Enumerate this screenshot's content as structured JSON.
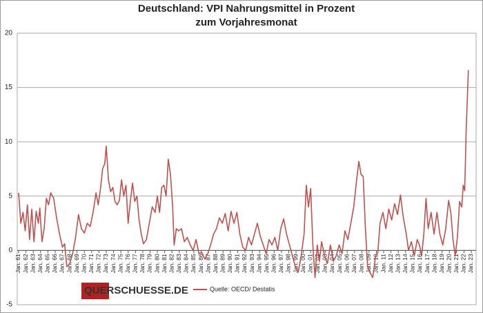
{
  "chart_data": {
    "type": "line",
    "title": "Deutschland: VPI Nahrungsmittel in Prozent",
    "subtitle": "zum Vorjahresmonat",
    "brand": "QUERSCHUESSE.DE",
    "series": [
      {
        "name": "Quelle: OECD/ Destatis",
        "color": "#c0504d",
        "x": [
          1961.0,
          1961.3,
          1961.6,
          1961.9,
          1962.2,
          1962.5,
          1962.8,
          1963.1,
          1963.4,
          1963.7,
          1963.9,
          1964.2,
          1964.5,
          1964.8,
          1965.1,
          1965.4,
          1965.8,
          1966.2,
          1966.6,
          1967.0,
          1967.3,
          1967.6,
          1968.0,
          1968.4,
          1968.8,
          1969.2,
          1969.6,
          1970.0,
          1970.4,
          1970.8,
          1971.2,
          1971.6,
          1971.9,
          1972.2,
          1972.5,
          1972.8,
          1973.0,
          1973.3,
          1973.6,
          1973.9,
          1974.2,
          1974.5,
          1974.8,
          1975.1,
          1975.4,
          1975.7,
          1976.0,
          1976.3,
          1976.6,
          1976.9,
          1977.2,
          1977.5,
          1977.8,
          1978.1,
          1978.5,
          1978.9,
          1979.3,
          1979.7,
          1980.0,
          1980.3,
          1980.6,
          1980.9,
          1981.2,
          1981.5,
          1981.8,
          1982.1,
          1982.3,
          1982.6,
          1982.9,
          1983.3,
          1983.7,
          1984.1,
          1984.5,
          1984.9,
          1985.3,
          1985.7,
          1986.1,
          1986.5,
          1986.9,
          1987.3,
          1987.7,
          1988.1,
          1988.5,
          1988.9,
          1989.3,
          1989.7,
          1990.1,
          1990.5,
          1990.9,
          1991.3,
          1991.7,
          1992.1,
          1992.5,
          1992.9,
          1993.3,
          1993.7,
          1994.1,
          1994.5,
          1994.9,
          1995.3,
          1995.7,
          1996.1,
          1996.5,
          1996.9,
          1997.3,
          1997.7,
          1998.1,
          1998.5,
          1998.9,
          1999.3,
          1999.7,
          2000.1,
          2000.4,
          2000.7,
          2001.0,
          2001.3,
          2001.6,
          2001.9,
          2002.2,
          2002.5,
          2002.9,
          2003.3,
          2003.7,
          2004.1,
          2004.5,
          2004.9,
          2005.3,
          2005.7,
          2006.1,
          2006.5,
          2006.9,
          2007.3,
          2007.6,
          2007.9,
          2008.2,
          2008.5,
          2008.8,
          2009.1,
          2009.5,
          2009.9,
          2010.2,
          2010.5,
          2010.9,
          2011.3,
          2011.7,
          2012.1,
          2012.5,
          2012.9,
          2013.3,
          2013.7,
          2014.1,
          2014.4,
          2014.8,
          2015.2,
          2015.6,
          2015.9,
          2016.2,
          2016.5,
          2016.8,
          2017.1,
          2017.5,
          2017.9,
          2018.3,
          2018.7,
          2019.1,
          2019.5,
          2019.9,
          2020.2,
          2020.5,
          2020.8,
          2021.1,
          2021.4,
          2021.7,
          2021.9,
          2022.1,
          2022.3,
          2022.6
        ],
        "values": [
          5.3,
          2.5,
          3.5,
          1.8,
          4.2,
          1.0,
          3.8,
          0.8,
          3.6,
          2.5,
          3.9,
          0.8,
          2.0,
          4.8,
          4.2,
          5.3,
          4.8,
          3.0,
          1.5,
          0.3,
          0.6,
          -1.5,
          -1.2,
          -0.3,
          1.2,
          3.3,
          2.0,
          1.6,
          2.5,
          2.2,
          3.5,
          5.3,
          4.2,
          5.6,
          7.5,
          8.0,
          9.6,
          6.5,
          5.4,
          5.8,
          4.5,
          4.2,
          4.6,
          6.5,
          5.0,
          6.0,
          2.5,
          4.5,
          6.2,
          4.5,
          5.0,
          2.8,
          1.5,
          0.6,
          1.0,
          2.5,
          4.0,
          3.5,
          5.0,
          3.5,
          5.8,
          6.0,
          5.0,
          8.4,
          7.0,
          4.0,
          0.5,
          2.0,
          1.8,
          2.0,
          0.8,
          1.2,
          0.5,
          0.0,
          1.0,
          -0.3,
          -0.2,
          -0.8,
          -0.3,
          0.5,
          1.5,
          2.0,
          3.0,
          2.5,
          3.4,
          1.8,
          3.6,
          2.5,
          3.5,
          1.5,
          0.3,
          0.0,
          1.2,
          0.5,
          1.5,
          2.5,
          1.3,
          0.5,
          -0.3,
          1.0,
          0.5,
          1.2,
          0.0,
          2.0,
          2.9,
          1.5,
          0.5,
          -0.5,
          -1.5,
          -2.0,
          -0.5,
          1.5,
          6.0,
          4.0,
          5.7,
          0.5,
          -2.5,
          0.5,
          -1.0,
          0.8,
          -0.5,
          -1.2,
          0.5,
          -1.0,
          -0.5,
          0.5,
          -0.3,
          1.8,
          1.0,
          2.5,
          4.0,
          6.5,
          8.2,
          7.0,
          6.8,
          2.0,
          -1.5,
          -2.0,
          -2.5,
          -0.5,
          -0.2,
          2.5,
          3.5,
          2.0,
          3.8,
          2.8,
          4.3,
          3.3,
          5.1,
          3.0,
          1.5,
          0.0,
          0.8,
          -0.5,
          1.0,
          0.5,
          -0.5,
          1.5,
          4.8,
          2.0,
          3.5,
          1.5,
          3.5,
          1.5,
          0.5,
          2.0,
          4.6,
          3.5,
          1.0,
          -0.5,
          1.2,
          4.5,
          4.0,
          6.0,
          5.5,
          11.0,
          16.6
        ]
      }
    ],
    "xlim": [
      1961,
      2023
    ],
    "xticks": [
      {
        "value": 1961,
        "label": "Jan. 61"
      },
      {
        "value": 1962,
        "label": "Jan. 62"
      },
      {
        "value": 1963,
        "label": "Jan. 63"
      },
      {
        "value": 1964,
        "label": "Jan. 64"
      },
      {
        "value": 1965,
        "label": "Jan. 65"
      },
      {
        "value": 1966,
        "label": "Jan. 66"
      },
      {
        "value": 1967,
        "label": "Jan. 67"
      },
      {
        "value": 1968,
        "label": "Jan. 68"
      },
      {
        "value": 1969,
        "label": "Jan. 69"
      },
      {
        "value": 1970,
        "label": "Jan. 70"
      },
      {
        "value": 1971,
        "label": "Jan. 71"
      },
      {
        "value": 1972,
        "label": "Jan. 72"
      },
      {
        "value": 1973,
        "label": "Jan. 73"
      },
      {
        "value": 1974,
        "label": "Jan. 74"
      },
      {
        "value": 1975,
        "label": "Jan. 75"
      },
      {
        "value": 1976,
        "label": "Jan. 76"
      },
      {
        "value": 1977,
        "label": "Jan. 77"
      },
      {
        "value": 1978,
        "label": "Jan. 78"
      },
      {
        "value": 1979,
        "label": "Jan. 79"
      },
      {
        "value": 1980,
        "label": "Jan. 80"
      },
      {
        "value": 1981,
        "label": "Jan. 81"
      },
      {
        "value": 1982,
        "label": "Jan. 82"
      },
      {
        "value": 1983,
        "label": "Jan. 83"
      },
      {
        "value": 1984,
        "label": "Jan. 84"
      },
      {
        "value": 1985,
        "label": "Jan. 85"
      },
      {
        "value": 1986,
        "label": "Jan. 86"
      },
      {
        "value": 1987,
        "label": "Jan. 87"
      },
      {
        "value": 1988,
        "label": "Jan. 88"
      },
      {
        "value": 1989,
        "label": "Jan. 89"
      },
      {
        "value": 1990,
        "label": "Jan. 90"
      },
      {
        "value": 1991,
        "label": "Jan. 91"
      },
      {
        "value": 1992,
        "label": "Jan. 92"
      },
      {
        "value": 1993,
        "label": "Jan. 93"
      },
      {
        "value": 1994,
        "label": "Jan. 94"
      },
      {
        "value": 1995,
        "label": "Jan. 95"
      },
      {
        "value": 1996,
        "label": "Jan. 96"
      },
      {
        "value": 1997,
        "label": "Jan. 97"
      },
      {
        "value": 1998,
        "label": "Jan. 98"
      },
      {
        "value": 1999,
        "label": "Jan. 99"
      },
      {
        "value": 2000,
        "label": "Jan. 00"
      },
      {
        "value": 2001,
        "label": "Jan. 01"
      },
      {
        "value": 2002,
        "label": "Jan. 02"
      },
      {
        "value": 2003,
        "label": "Jan. 03"
      },
      {
        "value": 2004,
        "label": "Jan. 04"
      },
      {
        "value": 2005,
        "label": "Jan. 05"
      },
      {
        "value": 2006,
        "label": "Jan. 06"
      },
      {
        "value": 2007,
        "label": "Jan. 07"
      },
      {
        "value": 2008,
        "label": "Jan. 08"
      },
      {
        "value": 2009,
        "label": "Jan. 09"
      },
      {
        "value": 2010,
        "label": "Jan. 10"
      },
      {
        "value": 2011,
        "label": "Jan. 11"
      },
      {
        "value": 2012,
        "label": "Jan. 12"
      },
      {
        "value": 2013,
        "label": "Jan. 13"
      },
      {
        "value": 2014,
        "label": "Jan. 14"
      },
      {
        "value": 2015,
        "label": "Jan. 15"
      },
      {
        "value": 2016,
        "label": "Jan. 16"
      },
      {
        "value": 2017,
        "label": "Jan. 17"
      },
      {
        "value": 2018,
        "label": "Jan. 18"
      },
      {
        "value": 2019,
        "label": "Jan. 19"
      },
      {
        "value": 2020,
        "label": "Jan. 20"
      },
      {
        "value": 2021,
        "label": "Jan. 21"
      },
      {
        "value": 2022,
        "label": "Jan. 22"
      },
      {
        "value": 2023,
        "label": "Jan. 23"
      }
    ],
    "ylim": [
      -5,
      20
    ],
    "yticks": [
      -5,
      0,
      5,
      10,
      15,
      20
    ],
    "grid": true
  }
}
